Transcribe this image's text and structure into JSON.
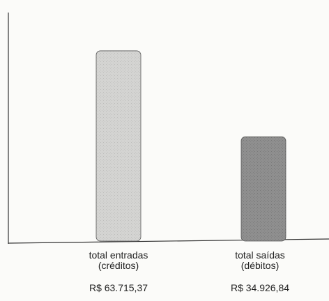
{
  "chart_data": {
    "type": "bar",
    "title": "",
    "xlabel": "",
    "ylabel": "",
    "grid": false,
    "ylim": [
      0,
      70000
    ],
    "categories": [
      "total entradas\n(créditos)",
      "total saídas\n(débitos)"
    ],
    "values": [
      63715.37,
      34926.84
    ],
    "value_labels": [
      "R$ 63.715,37",
      "R$ 34.926,84"
    ],
    "bar_colors": [
      "#d3d3d3",
      "#8e8e8e"
    ]
  }
}
